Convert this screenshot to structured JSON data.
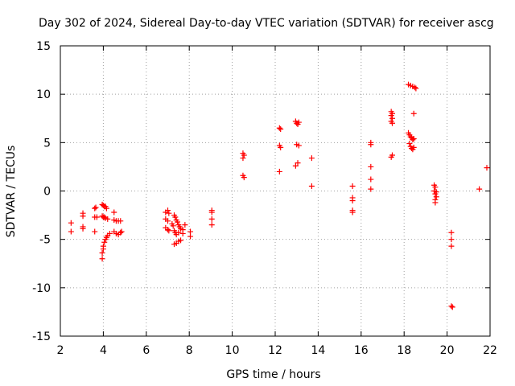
{
  "chart_data": {
    "type": "scatter",
    "title": "Day 302 of 2024, Sidereal Day-to-day VTEC variation (SDTVAR) for receiver ascg",
    "xlabel": "GPS time / hours",
    "ylabel": "SDTVAR / TECUs",
    "xlim": [
      2,
      22
    ],
    "ylim": [
      -15,
      15
    ],
    "xticks": [
      2,
      4,
      6,
      8,
      10,
      12,
      14,
      16,
      18,
      20,
      22
    ],
    "yticks": [
      -15,
      -10,
      -5,
      0,
      5,
      10,
      15
    ],
    "xtick_labels": [
      "2",
      "4",
      "6",
      "8",
      "10",
      "12",
      "14",
      "16",
      "18",
      "20",
      "22"
    ],
    "ytick_labels": [
      "-15",
      "-10",
      "-5",
      "0",
      "5",
      "10",
      "15"
    ],
    "grid": true,
    "marker": "+",
    "color": "#ff0000",
    "series": [
      {
        "name": "SDTVAR",
        "points": [
          [
            2.5,
            -3.3
          ],
          [
            2.5,
            -4.2
          ],
          [
            3.05,
            -2.3
          ],
          [
            3.05,
            -2.6
          ],
          [
            3.05,
            -3.7
          ],
          [
            3.05,
            -3.9
          ],
          [
            3.6,
            -1.8
          ],
          [
            3.65,
            -1.7
          ],
          [
            3.6,
            -2.7
          ],
          [
            3.7,
            -2.7
          ],
          [
            3.6,
            -4.2
          ],
          [
            3.95,
            -1.4
          ],
          [
            4.0,
            -1.5
          ],
          [
            4.05,
            -1.6
          ],
          [
            4.1,
            -1.6
          ],
          [
            4.15,
            -1.8
          ],
          [
            3.95,
            -2.6
          ],
          [
            4.0,
            -2.7
          ],
          [
            4.05,
            -2.7
          ],
          [
            4.1,
            -2.8
          ],
          [
            4.2,
            -2.9
          ],
          [
            3.95,
            -7.0
          ],
          [
            3.95,
            -6.4
          ],
          [
            4.0,
            -6.0
          ],
          [
            4.0,
            -5.7
          ],
          [
            4.05,
            -5.3
          ],
          [
            4.1,
            -5.0
          ],
          [
            4.15,
            -4.8
          ],
          [
            4.2,
            -4.6
          ],
          [
            4.3,
            -4.4
          ],
          [
            4.5,
            -2.2
          ],
          [
            4.5,
            -3.0
          ],
          [
            4.6,
            -3.1
          ],
          [
            4.7,
            -3.1
          ],
          [
            4.8,
            -3.1
          ],
          [
            4.5,
            -4.2
          ],
          [
            4.6,
            -4.4
          ],
          [
            4.7,
            -4.5
          ],
          [
            4.8,
            -4.3
          ],
          [
            4.85,
            -4.2
          ],
          [
            6.9,
            -2.2
          ],
          [
            7.0,
            -2.0
          ],
          [
            7.05,
            -2.3
          ],
          [
            6.9,
            -2.9
          ],
          [
            7.0,
            -3.1
          ],
          [
            6.9,
            -3.8
          ],
          [
            7.0,
            -4.0
          ],
          [
            7.05,
            -4.1
          ],
          [
            7.3,
            -2.5
          ],
          [
            7.35,
            -2.7
          ],
          [
            7.4,
            -3.0
          ],
          [
            7.45,
            -3.2
          ],
          [
            7.5,
            -3.5
          ],
          [
            7.55,
            -3.7
          ],
          [
            7.6,
            -3.9
          ],
          [
            7.2,
            -3.4
          ],
          [
            7.25,
            -3.6
          ],
          [
            7.3,
            -4.1
          ],
          [
            7.35,
            -4.3
          ],
          [
            7.4,
            -4.5
          ],
          [
            7.5,
            -4.3
          ],
          [
            7.3,
            -5.5
          ],
          [
            7.4,
            -5.4
          ],
          [
            7.5,
            -5.2
          ],
          [
            7.6,
            -5.1
          ],
          [
            7.7,
            -4.0
          ],
          [
            7.7,
            -4.4
          ],
          [
            7.8,
            -3.5
          ],
          [
            8.05,
            -4.2
          ],
          [
            8.05,
            -4.7
          ],
          [
            9.05,
            -2.0
          ],
          [
            9.05,
            -2.2
          ],
          [
            9.05,
            -2.9
          ],
          [
            9.05,
            -3.5
          ],
          [
            10.5,
            3.9
          ],
          [
            10.55,
            3.7
          ],
          [
            10.5,
            3.4
          ],
          [
            10.5,
            1.6
          ],
          [
            10.55,
            1.4
          ],
          [
            12.2,
            6.5
          ],
          [
            12.25,
            6.4
          ],
          [
            12.2,
            4.7
          ],
          [
            12.25,
            4.5
          ],
          [
            12.2,
            2.0
          ],
          [
            12.95,
            7.2
          ],
          [
            13.0,
            7.0
          ],
          [
            13.05,
            6.9
          ],
          [
            13.1,
            7.1
          ],
          [
            13.0,
            4.8
          ],
          [
            13.1,
            4.7
          ],
          [
            12.95,
            2.6
          ],
          [
            13.05,
            2.9
          ],
          [
            13.7,
            3.4
          ],
          [
            13.7,
            0.5
          ],
          [
            15.6,
            0.5
          ],
          [
            15.6,
            -0.7
          ],
          [
            15.6,
            -1.0
          ],
          [
            15.6,
            -2.0
          ],
          [
            15.6,
            -2.2
          ],
          [
            16.45,
            5.0
          ],
          [
            16.45,
            4.8
          ],
          [
            16.45,
            2.5
          ],
          [
            16.45,
            1.2
          ],
          [
            16.45,
            0.2
          ],
          [
            17.4,
            8.2
          ],
          [
            17.45,
            8.0
          ],
          [
            17.4,
            7.8
          ],
          [
            17.45,
            7.5
          ],
          [
            17.4,
            7.2
          ],
          [
            17.45,
            7.0
          ],
          [
            17.4,
            3.5
          ],
          [
            17.45,
            3.7
          ],
          [
            18.2,
            11.0
          ],
          [
            18.3,
            10.9
          ],
          [
            18.4,
            10.8
          ],
          [
            18.5,
            10.7
          ],
          [
            18.55,
            10.6
          ],
          [
            18.45,
            8.0
          ],
          [
            18.2,
            6.0
          ],
          [
            18.25,
            5.8
          ],
          [
            18.3,
            5.6
          ],
          [
            18.35,
            5.5
          ],
          [
            18.4,
            5.3
          ],
          [
            18.45,
            5.4
          ],
          [
            18.25,
            4.9
          ],
          [
            18.3,
            4.6
          ],
          [
            18.35,
            4.4
          ],
          [
            18.4,
            4.3
          ],
          [
            18.45,
            4.5
          ],
          [
            19.4,
            0.6
          ],
          [
            19.45,
            0.4
          ],
          [
            19.4,
            0.0
          ],
          [
            19.45,
            -0.3
          ],
          [
            19.5,
            -0.6
          ],
          [
            19.45,
            -0.9
          ],
          [
            19.45,
            -1.2
          ],
          [
            19.5,
            -0.1
          ],
          [
            20.2,
            -4.3
          ],
          [
            20.2,
            -5.0
          ],
          [
            20.2,
            -5.7
          ],
          [
            20.2,
            -11.9
          ],
          [
            20.25,
            -12.0
          ],
          [
            21.5,
            0.2
          ],
          [
            21.85,
            2.4
          ]
        ]
      }
    ]
  }
}
